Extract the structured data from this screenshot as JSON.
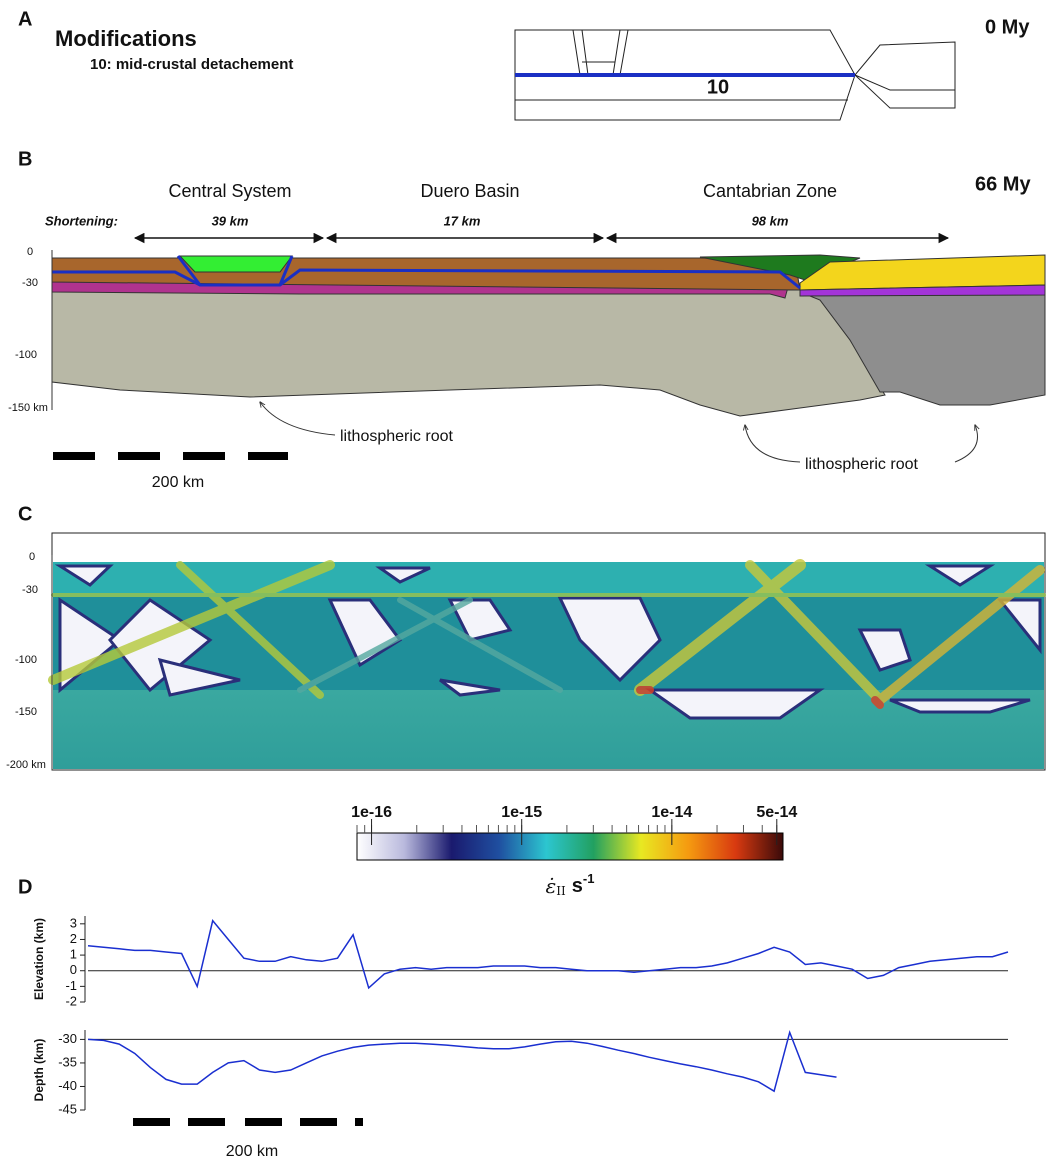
{
  "panels": {
    "A": {
      "letter": "A",
      "title": "Modifications",
      "item": "10: mid-crustal detachement",
      "time": "0 My",
      "layer_label": "10"
    },
    "B": {
      "letter": "B",
      "time": "66 My",
      "regions": [
        {
          "name": "Central System",
          "shortening": "39 km"
        },
        {
          "name": "Duero Basin",
          "shortening": "17 km"
        },
        {
          "name": "Cantabrian Zone",
          "shortening": "98 km"
        }
      ],
      "shortening_label": "Shortening:",
      "depth_labels": [
        "0",
        "-30",
        "-100",
        "-150 km"
      ],
      "annotation": "lithospheric root",
      "scale_bar": "200 km"
    },
    "C": {
      "letter": "C",
      "depth_labels": [
        "0",
        "-30",
        "-100",
        "-150",
        "-200 km"
      ],
      "colorbar": {
        "log": true,
        "xlim": [
          8e-17,
          5.5e-14
        ],
        "xticks": [
          {
            "value": 1e-16,
            "label": "1e-16"
          },
          {
            "value": 1e-15,
            "label": "1e-15"
          },
          {
            "value": 1e-14,
            "label": "1e-14"
          },
          {
            "value": 5e-14,
            "label": "5e-14"
          }
        ],
        "colors": [
          "#ffffff",
          "#b9b9dd",
          "#1a1a6e",
          "#1f4fa0",
          "#2cc6d0",
          "#22a060",
          "#e8e822",
          "#f59a10",
          "#d83a10",
          "#3a0a0a"
        ],
        "label": {
          "symbol": "ε̇",
          "subscript": "II",
          "unit": "s",
          "exponent": "-1"
        }
      }
    },
    "D": {
      "letter": "D",
      "scale_bar": "200 km"
    }
  },
  "chart_data": [
    {
      "type": "line",
      "ylabel": "Elevation (km)",
      "color": "#1a2fd0",
      "reference_line": 0,
      "ylim": [
        -2,
        3.5
      ],
      "yticks": [
        3,
        2,
        1,
        0,
        -1,
        -2
      ],
      "values": [
        1.6,
        1.5,
        1.4,
        1.3,
        1.3,
        1.2,
        1.1,
        -1.0,
        3.2,
        2.0,
        0.8,
        0.6,
        0.6,
        0.9,
        0.7,
        0.6,
        0.8,
        2.3,
        -1.1,
        -0.2,
        0.1,
        0.2,
        0.1,
        0.2,
        0.2,
        0.2,
        0.3,
        0.3,
        0.3,
        0.2,
        0.2,
        0.1,
        0.0,
        0.0,
        0.0,
        -0.1,
        0.0,
        0.1,
        0.2,
        0.2,
        0.3,
        0.5,
        0.8,
        1.1,
        1.5,
        1.2,
        0.4,
        0.5,
        0.3,
        0.1,
        -0.5,
        -0.3,
        0.2,
        0.4,
        0.6,
        0.7,
        0.8,
        0.9,
        0.9,
        1.2
      ]
    },
    {
      "type": "line",
      "ylabel": "Depth (km)",
      "color": "#1a2fd0",
      "reference_line": -30,
      "ylim": [
        -45,
        -28
      ],
      "yticks": [
        -30,
        -35,
        -40,
        -45
      ],
      "values": [
        -30,
        -30.2,
        -31,
        -33,
        -36,
        -38.5,
        -39.5,
        -39.5,
        -37,
        -35,
        -34.5,
        -36.5,
        -37,
        -36.5,
        -35,
        -33.5,
        -32.5,
        -31.7,
        -31.2,
        -31,
        -30.8,
        -30.8,
        -31,
        -31.2,
        -31.5,
        -31.8,
        -32,
        -32,
        -31.6,
        -31,
        -30.5,
        -30.4,
        -30.8,
        -31.5,
        -32.3,
        -33,
        -33.8,
        -34.5,
        -35.2,
        -35.8,
        -36.5,
        -37.3,
        -38,
        -39,
        -41,
        -28.5,
        -37,
        -37.5,
        -38,
        null,
        null,
        null,
        null,
        null,
        null,
        null,
        null,
        null,
        null,
        null
      ]
    }
  ]
}
